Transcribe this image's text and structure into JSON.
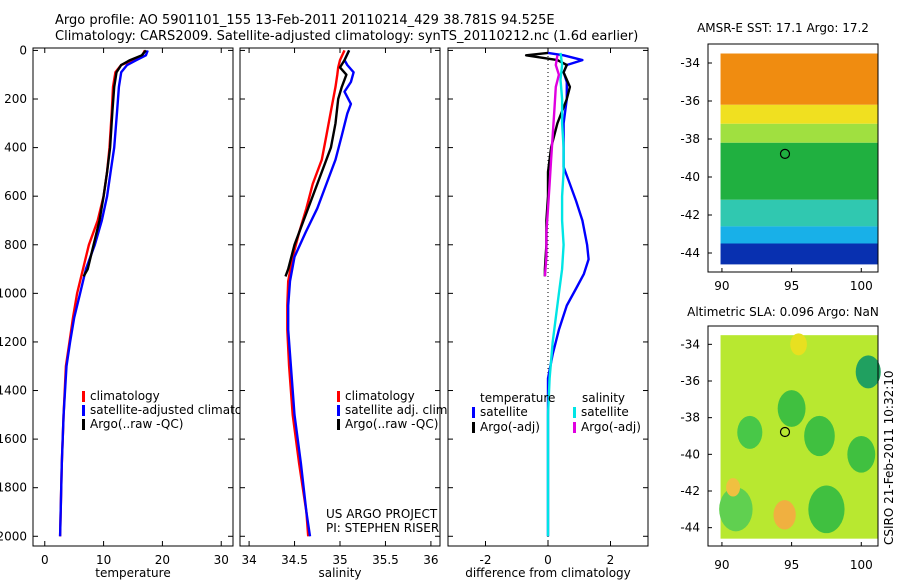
{
  "header": {
    "line1": "Argo profile: AO 5901101_155 13-Feb-2011 20110214_429 38.781S 94.525E",
    "line2": "Climatology: CARS2009. Satellite-adjusted climatology: synTS_20110212.nc (1.6d earlier)"
  },
  "colors": {
    "red": "#ff0000",
    "blue": "#0000ff",
    "black": "#000000",
    "cyan": "#00e5e5",
    "magenta": "#e000e0"
  },
  "chart_data": [
    {
      "type": "line",
      "id": "temperature",
      "xlabel": "temperature",
      "xlim": [
        -2,
        32
      ],
      "xticks": [
        0,
        10,
        20,
        30
      ],
      "ylim": [
        2040,
        -10
      ],
      "yticks": [
        0,
        200,
        400,
        600,
        800,
        1000,
        1200,
        1400,
        1600,
        1800,
        2000
      ],
      "legend": [
        "climatology",
        "satellite-adjusted climatology",
        "Argo(..raw -QC)"
      ],
      "series": [
        {
          "name": "climatology",
          "color": "red",
          "points": [
            [
              17,
              0
            ],
            [
              16.6,
              20
            ],
            [
              15,
              40
            ],
            [
              13,
              60
            ],
            [
              12,
              90
            ],
            [
              11.6,
              150
            ],
            [
              11.4,
              250
            ],
            [
              11,
              400
            ],
            [
              10.6,
              500
            ],
            [
              10,
              600
            ],
            [
              9,
              700
            ],
            [
              7.5,
              800
            ],
            [
              6.5,
              900
            ],
            [
              5.5,
              1000
            ],
            [
              4.8,
              1100
            ],
            [
              4.2,
              1200
            ],
            [
              3.6,
              1300
            ],
            [
              3.2,
              1500
            ],
            [
              2.9,
              1700
            ],
            [
              2.6,
              2000
            ]
          ]
        },
        {
          "name": "satellite-adjusted climatology",
          "color": "blue",
          "points": [
            [
              17.5,
              0
            ],
            [
              17.2,
              20
            ],
            [
              15.6,
              40
            ],
            [
              14,
              60
            ],
            [
              13,
              90
            ],
            [
              12.6,
              150
            ],
            [
              12.3,
              250
            ],
            [
              11.8,
              400
            ],
            [
              11.2,
              500
            ],
            [
              10.6,
              600
            ],
            [
              9.7,
              700
            ],
            [
              8.5,
              800
            ],
            [
              7,
              900
            ],
            [
              6,
              1000
            ],
            [
              5,
              1100
            ],
            [
              4.3,
              1200
            ],
            [
              3.7,
              1300
            ],
            [
              3.2,
              1500
            ],
            [
              2.9,
              1700
            ],
            [
              2.6,
              2000
            ]
          ]
        },
        {
          "name": "Argo(..raw -QC)",
          "color": "black",
          "points": [
            [
              17.2,
              0
            ],
            [
              16.5,
              20
            ],
            [
              14.5,
              40
            ],
            [
              13,
              60
            ],
            [
              12.2,
              90
            ],
            [
              11.8,
              150
            ],
            [
              11.5,
              250
            ],
            [
              11.1,
              400
            ],
            [
              10.6,
              500
            ],
            [
              10,
              600
            ],
            [
              9.3,
              700
            ],
            [
              8.3,
              800
            ],
            [
              7.3,
              900
            ],
            [
              6.6,
              930
            ]
          ]
        }
      ]
    },
    {
      "type": "line",
      "id": "salinity",
      "xlabel": "salinity",
      "xlim": [
        33.9,
        36.1
      ],
      "xticks": [
        34,
        34.5,
        35,
        35.5,
        36
      ],
      "ylim": [
        2040,
        -10
      ],
      "yticks": [
        0,
        200,
        400,
        600,
        800,
        1000,
        1200,
        1400,
        1600,
        1800,
        2000
      ],
      "legend": [
        "climatology",
        "satellite adj. clim.",
        "Argo(..raw -QC)"
      ],
      "annotation": [
        "US ARGO PROJECT",
        "PI: STEPHEN RISER"
      ],
      "series": [
        {
          "name": "climatology",
          "color": "red",
          "points": [
            [
              35.05,
              0
            ],
            [
              35,
              40
            ],
            [
              34.98,
              70
            ],
            [
              34.97,
              100
            ],
            [
              34.95,
              150
            ],
            [
              34.9,
              250
            ],
            [
              34.85,
              350
            ],
            [
              34.8,
              450
            ],
            [
              34.7,
              550
            ],
            [
              34.63,
              650
            ],
            [
              34.55,
              750
            ],
            [
              34.48,
              850
            ],
            [
              34.43,
              950
            ],
            [
              34.42,
              1050
            ],
            [
              34.42,
              1150
            ],
            [
              34.44,
              1300
            ],
            [
              34.48,
              1500
            ],
            [
              34.55,
              1700
            ],
            [
              34.63,
              1900
            ],
            [
              34.65,
              2000
            ]
          ]
        },
        {
          "name": "satellite adj. clim.",
          "color": "blue",
          "points": [
            [
              35.1,
              0
            ],
            [
              35.05,
              40
            ],
            [
              35.08,
              60
            ],
            [
              35.15,
              90
            ],
            [
              35.12,
              130
            ],
            [
              35.05,
              170
            ],
            [
              35.12,
              220
            ],
            [
              35.08,
              260
            ],
            [
              35.02,
              350
            ],
            [
              34.95,
              450
            ],
            [
              34.85,
              550
            ],
            [
              34.75,
              650
            ],
            [
              34.62,
              750
            ],
            [
              34.5,
              850
            ],
            [
              34.45,
              950
            ],
            [
              34.43,
              1050
            ],
            [
              34.43,
              1150
            ],
            [
              34.46,
              1300
            ],
            [
              34.5,
              1500
            ],
            [
              34.57,
              1700
            ],
            [
              34.63,
              1900
            ],
            [
              34.67,
              2000
            ]
          ]
        },
        {
          "name": "Argo(..raw -QC)",
          "color": "black",
          "points": [
            [
              35.1,
              0
            ],
            [
              35.05,
              40
            ],
            [
              35.0,
              70
            ],
            [
              35.07,
              100
            ],
            [
              35.02,
              150
            ],
            [
              34.98,
              200
            ],
            [
              34.95,
              300
            ],
            [
              34.9,
              400
            ],
            [
              34.8,
              500
            ],
            [
              34.7,
              600
            ],
            [
              34.6,
              700
            ],
            [
              34.5,
              800
            ],
            [
              34.43,
              900
            ],
            [
              34.4,
              930
            ]
          ]
        }
      ]
    },
    {
      "type": "line",
      "id": "difference",
      "xlabel": "difference from climatology",
      "xlim": [
        -3.2,
        3.2
      ],
      "xticks": [
        -2,
        0,
        2
      ],
      "ylim": [
        2040,
        -10
      ],
      "yticks": [
        0,
        200,
        400,
        600,
        800,
        1000,
        1200,
        1400,
        1600,
        1800,
        2000
      ],
      "legend_titles": [
        "temperature",
        "salinity"
      ],
      "legend": [
        "satellite",
        "Argo(-adj)",
        "satellite",
        "Argo(-adj)"
      ],
      "series": [
        {
          "name": "temperature satellite",
          "color": "blue",
          "points": [
            [
              0,
              10
            ],
            [
              0.5,
              20
            ],
            [
              1.1,
              40
            ],
            [
              0.6,
              60
            ],
            [
              0.5,
              90
            ],
            [
              0.6,
              130
            ],
            [
              0.6,
              200
            ],
            [
              0.5,
              300
            ],
            [
              0.5,
              400
            ],
            [
              0.5,
              480
            ],
            [
              0.7,
              550
            ],
            [
              0.9,
              620
            ],
            [
              1.1,
              700
            ],
            [
              1.25,
              800
            ],
            [
              1.3,
              860
            ],
            [
              1.15,
              920
            ],
            [
              0.9,
              980
            ],
            [
              0.6,
              1050
            ],
            [
              0.35,
              1150
            ],
            [
              0.15,
              1250
            ],
            [
              0,
              1350
            ],
            [
              0,
              2000
            ]
          ]
        },
        {
          "name": "temperature Argo(-adj)",
          "color": "black",
          "points": [
            [
              0,
              10
            ],
            [
              -0.7,
              20
            ],
            [
              0.3,
              40
            ],
            [
              0.6,
              60
            ],
            [
              0.5,
              90
            ],
            [
              0.7,
              150
            ],
            [
              0.6,
              200
            ],
            [
              0.3,
              300
            ],
            [
              0.1,
              400
            ],
            [
              0,
              500
            ],
            [
              0,
              600
            ],
            [
              -0.05,
              700
            ],
            [
              -0.05,
              800
            ],
            [
              -0.1,
              900
            ],
            [
              -0.1,
              930
            ]
          ]
        },
        {
          "name": "salinity satellite",
          "color": "cyan",
          "points": [
            [
              0.4,
              10
            ],
            [
              0.45,
              60
            ],
            [
              0.4,
              120
            ],
            [
              0.45,
              200
            ],
            [
              0.45,
              300
            ],
            [
              0.5,
              400
            ],
            [
              0.5,
              500
            ],
            [
              0.45,
              600
            ],
            [
              0.45,
              700
            ],
            [
              0.5,
              800
            ],
            [
              0.45,
              900
            ],
            [
              0.35,
              1000
            ],
            [
              0.25,
              1100
            ],
            [
              0.15,
              1200
            ],
            [
              0.05,
              1350
            ],
            [
              0,
              1500
            ],
            [
              0,
              2000
            ]
          ]
        },
        {
          "name": "salinity Argo(-adj)",
          "color": "magenta",
          "points": [
            [
              0.3,
              20
            ],
            [
              0.25,
              60
            ],
            [
              0.35,
              100
            ],
            [
              0.25,
              150
            ],
            [
              0.2,
              250
            ],
            [
              0.15,
              350
            ],
            [
              0.1,
              450
            ],
            [
              0.05,
              550
            ],
            [
              0,
              650
            ],
            [
              -0.05,
              750
            ],
            [
              -0.05,
              850
            ],
            [
              -0.1,
              930
            ]
          ]
        }
      ]
    },
    {
      "type": "heatmap",
      "id": "sst_map",
      "title": "AMSR-E SST: 17.1  Argo: 17.2",
      "xlim": [
        89,
        101.2
      ],
      "xticks": [
        90,
        95,
        100
      ],
      "ylim": [
        -45,
        -33
      ],
      "yticks": [
        -34,
        -36,
        -38,
        -40,
        -42,
        -44
      ],
      "marker": {
        "lon": 94.525,
        "lat": -38.781
      },
      "bands": [
        {
          "from": -33.5,
          "to": -36.2,
          "color": "#f08c10"
        },
        {
          "from": -36.2,
          "to": -37.2,
          "color": "#f0e020"
        },
        {
          "from": -37.2,
          "to": -38.2,
          "color": "#a0e040"
        },
        {
          "from": -38.2,
          "to": -41.2,
          "color": "#20b040"
        },
        {
          "from": -41.2,
          "to": -42.6,
          "color": "#30c8b0"
        },
        {
          "from": -42.6,
          "to": -43.5,
          "color": "#18b0e8"
        },
        {
          "from": -43.5,
          "to": -44.6,
          "color": "#0830b0"
        }
      ]
    },
    {
      "type": "heatmap",
      "id": "sla_map",
      "title": "Altimetric SLA: 0.096  Argo: NaN",
      "xlim": [
        89,
        101.2
      ],
      "xticks": [
        90,
        95,
        100
      ],
      "ylim": [
        -45,
        -33
      ],
      "yticks": [
        -34,
        -36,
        -38,
        -40,
        -42,
        -44
      ],
      "marker": {
        "lon": 94.525,
        "lat": -38.781
      },
      "base_color": "#b8e830",
      "blobs": [
        {
          "lon": 100.5,
          "lat": -35.5,
          "r": 0.9,
          "color": "#20a060"
        },
        {
          "lon": 95,
          "lat": -37.5,
          "r": 1.0,
          "color": "#40c040"
        },
        {
          "lon": 92,
          "lat": -38.8,
          "r": 0.9,
          "color": "#48c848"
        },
        {
          "lon": 97,
          "lat": -39,
          "r": 1.1,
          "color": "#40c040"
        },
        {
          "lon": 100,
          "lat": -40,
          "r": 1.0,
          "color": "#40c040"
        },
        {
          "lon": 91,
          "lat": -43,
          "r": 1.2,
          "color": "#60d050"
        },
        {
          "lon": 97.5,
          "lat": -43,
          "r": 1.3,
          "color": "#40c040"
        },
        {
          "lon": 94.5,
          "lat": -43.3,
          "r": 0.8,
          "color": "#f0b040"
        },
        {
          "lon": 90.8,
          "lat": -41.8,
          "r": 0.5,
          "color": "#f0c040"
        },
        {
          "lon": 95.5,
          "lat": -34,
          "r": 0.6,
          "color": "#e8e020"
        }
      ]
    }
  ],
  "side_label": "CSIRO 21-Feb-2011 10:32:10"
}
